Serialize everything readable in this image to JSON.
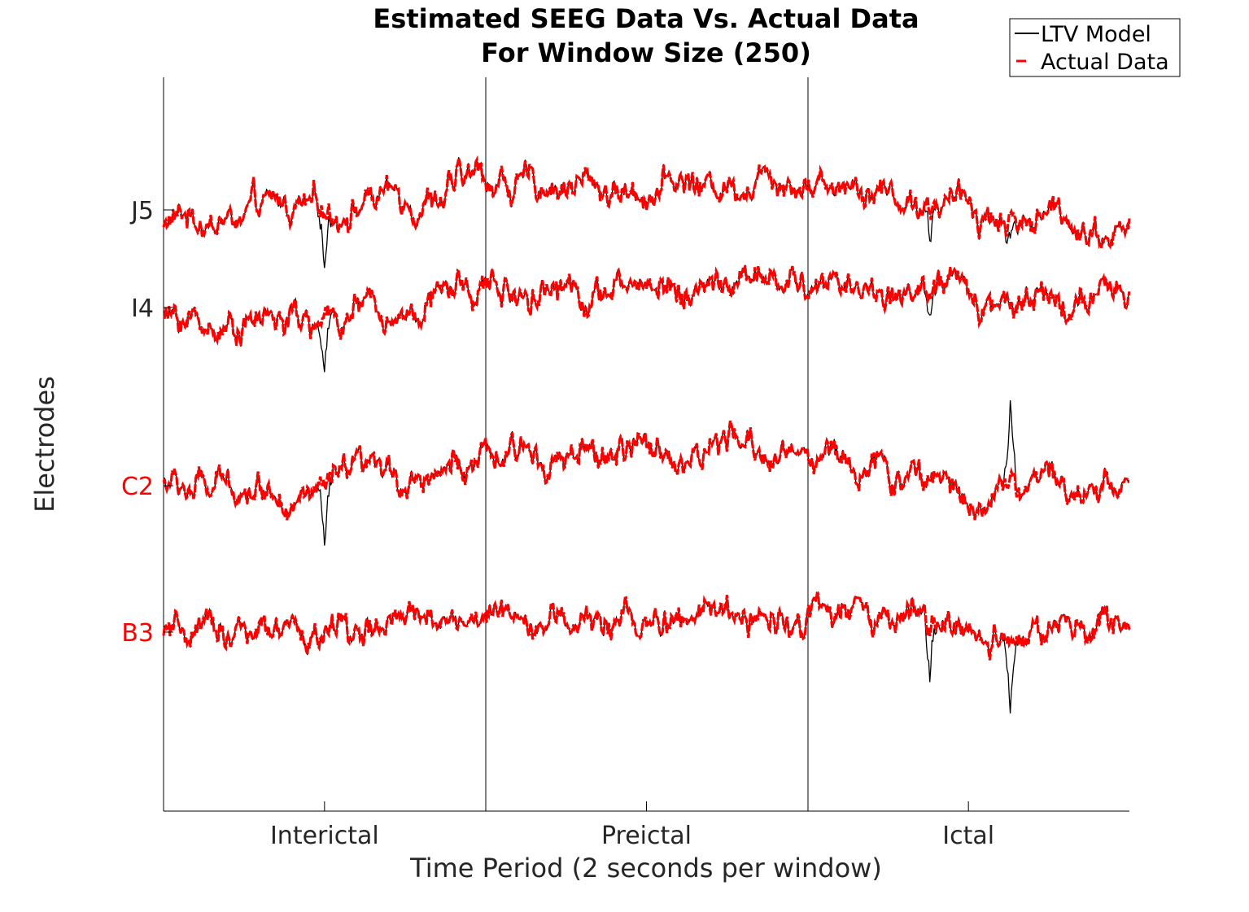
{
  "chart_data": {
    "type": "line",
    "title": [
      "Estimated SEEG Data Vs. Actual Data",
      "For Window Size (250)"
    ],
    "xlabel": "Time Period (2 seconds per window)",
    "ylabel": "Electrodes",
    "x_tick_labels": [
      "Interictal",
      "Preictal",
      "Ictal"
    ],
    "periods": [
      "Interictal",
      "Preictal",
      "Ictal"
    ],
    "electrodes": [
      {
        "label": "J5",
        "color": "#262626"
      },
      {
        "label": "I4",
        "color": "#262626"
      },
      {
        "label": "C2",
        "color": "#ff0000"
      },
      {
        "label": "B3",
        "color": "#ff0000"
      }
    ],
    "legend": {
      "position": "top-right",
      "entries": [
        "LTV Model",
        "Actual Data"
      ]
    },
    "series": [
      {
        "name": "LTV Model",
        "color": "#000000",
        "style": "solid"
      },
      {
        "name": "Actual Data",
        "color": "#ff0000",
        "style": "dashed"
      }
    ],
    "traces_note": "",
    "traces": [
      {
        "electrode": "J5",
        "shape": [
          [
            0,
            -0.4
          ],
          [
            0.5,
            0.05
          ],
          [
            1,
            0.8
          ],
          [
            1.5,
            0.6
          ],
          [
            2,
            1.05
          ],
          [
            2.5,
            0.05
          ],
          [
            3,
            -0.55
          ]
        ],
        "spikes": [
          [
            0.5,
            -1.7
          ],
          [
            2.38,
            -0.95
          ],
          [
            2.63,
            -0.85
          ]
        ]
      },
      {
        "electrode": "I4",
        "shape": [
          [
            0,
            -0.4
          ],
          [
            0.5,
            -0.4
          ],
          [
            1,
            0.6
          ],
          [
            1.5,
            0.55
          ],
          [
            2,
            0.65
          ],
          [
            2.5,
            0.35
          ],
          [
            3,
            0.15
          ]
        ],
        "spikes": [
          [
            0.5,
            -2.0
          ],
          [
            2.38,
            -0.7
          ]
        ]
      },
      {
        "electrode": "C2",
        "shape": [
          [
            0,
            0.0
          ],
          [
            0.5,
            -0.1
          ],
          [
            1,
            0.7
          ],
          [
            1.5,
            0.9
          ],
          [
            2,
            1.0
          ],
          [
            2.5,
            -0.2
          ],
          [
            3,
            0.15
          ]
        ],
        "spikes": [
          [
            0.5,
            -2.0
          ],
          [
            2.63,
            2.5
          ]
        ]
      },
      {
        "electrode": "B3",
        "shape": [
          [
            0,
            -0.05
          ],
          [
            0.5,
            -0.15
          ],
          [
            1,
            0.55
          ],
          [
            1.5,
            0.2
          ],
          [
            2,
            0.55
          ],
          [
            2.5,
            0.05
          ],
          [
            3,
            0.0
          ]
        ],
        "spikes": [
          [
            2.38,
            -1.5
          ],
          [
            2.63,
            -2.3
          ]
        ]
      }
    ]
  }
}
